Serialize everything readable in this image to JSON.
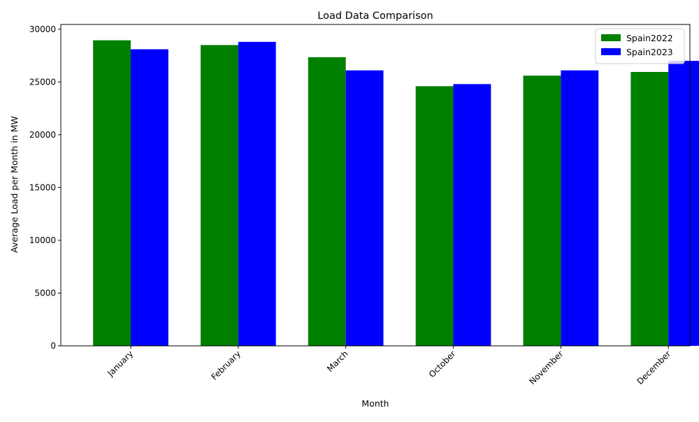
{
  "chart_data": {
    "type": "bar",
    "title": "Load Data Comparison",
    "xlabel": "Month",
    "ylabel": "Average Load per Month in MW",
    "categories": [
      "January",
      "February",
      "March",
      "October",
      "November",
      "December"
    ],
    "series": [
      {
        "name": "Spain2022",
        "color": "#008000",
        "values": [
          28950,
          28500,
          27350,
          24600,
          25600,
          25950
        ]
      },
      {
        "name": "Spain2023",
        "color": "#0000ff",
        "values": [
          28100,
          28800,
          26100,
          24800,
          26100,
          27000
        ]
      }
    ],
    "ylim": [
      0,
      30450
    ],
    "yticks": [
      0,
      5000,
      10000,
      15000,
      20000,
      25000,
      30000
    ],
    "xtick_rotation_deg": 45,
    "grid": false,
    "legend_position": "top-right"
  }
}
